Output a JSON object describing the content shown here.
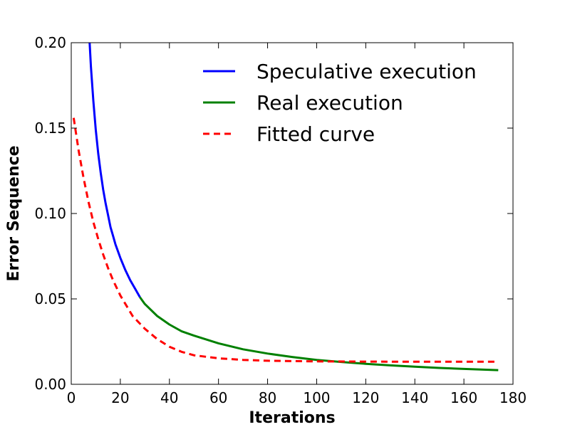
{
  "chart_data": {
    "type": "line",
    "title": "",
    "xlabel": "Iterations",
    "ylabel": "Error Sequence",
    "xlim": [
      0,
      180
    ],
    "ylim": [
      0,
      0.2
    ],
    "xticks": [
      0,
      20,
      40,
      60,
      80,
      100,
      120,
      140,
      160,
      180
    ],
    "yticks": [
      0.0,
      0.05,
      0.1,
      0.15,
      0.2
    ],
    "xtick_labels": [
      "0",
      "20",
      "40",
      "60",
      "80",
      "100",
      "120",
      "140",
      "160",
      "180"
    ],
    "ytick_labels": [
      "0.00",
      "0.05",
      "0.10",
      "0.15",
      "0.20"
    ],
    "grid": false,
    "legend_position": "top-right",
    "series": [
      {
        "name": "Speculative execution",
        "color": "#0000ff",
        "style": "solid",
        "x": [
          7.5,
          8,
          9,
          10,
          11,
          12,
          13,
          14,
          15,
          16,
          17,
          18,
          20,
          22,
          24,
          26,
          28
        ],
        "y": [
          0.2,
          0.186,
          0.166,
          0.149,
          0.135,
          0.124,
          0.114,
          0.106,
          0.099,
          0.092,
          0.087,
          0.082,
          0.074,
          0.067,
          0.061,
          0.056,
          0.051
        ]
      },
      {
        "name": "Real execution",
        "color": "#008000",
        "style": "solid",
        "x": [
          28,
          30,
          35,
          40,
          45,
          50,
          60,
          70,
          80,
          90,
          100,
          110,
          120,
          130,
          140,
          150,
          160,
          174
        ],
        "y": [
          0.051,
          0.047,
          0.04,
          0.035,
          0.031,
          0.0285,
          0.024,
          0.0205,
          0.018,
          0.016,
          0.0143,
          0.0131,
          0.012,
          0.0111,
          0.0103,
          0.0096,
          0.009,
          0.0083
        ]
      },
      {
        "name": "Fitted curve",
        "color": "#ff0000",
        "style": "dashed",
        "x": [
          1,
          3,
          5,
          7,
          9,
          11,
          13,
          15,
          17,
          20,
          25,
          30,
          35,
          40,
          45,
          50,
          60,
          70,
          80,
          100,
          120,
          140,
          160,
          174
        ],
        "y": [
          0.156,
          0.137,
          0.121,
          0.107,
          0.095,
          0.085,
          0.076,
          0.068,
          0.061,
          0.052,
          0.04,
          0.0325,
          0.0265,
          0.022,
          0.019,
          0.017,
          0.0152,
          0.0143,
          0.0138,
          0.0134,
          0.0133,
          0.0132,
          0.0132,
          0.0132
        ]
      }
    ]
  }
}
